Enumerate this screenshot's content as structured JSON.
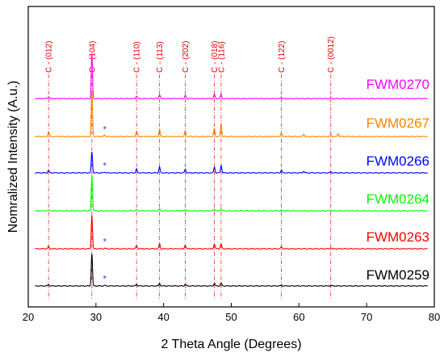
{
  "chart_data": {
    "type": "line",
    "xlabel": "2 Theta Angle (Degrees)",
    "ylabel": "Nomralized Intensity (A.u.)",
    "xlim": [
      20,
      80
    ],
    "xticks": [
      20,
      30,
      40,
      50,
      60,
      70,
      80
    ],
    "grid": false,
    "reference_peaks": [
      {
        "label": "C - (012)",
        "x": 23.0
      },
      {
        "label": "C - (104)",
        "x": 29.4
      },
      {
        "label": "C - (110)",
        "x": 36.0
      },
      {
        "label": "C - (113)",
        "x": 39.4
      },
      {
        "label": "C - (202)",
        "x": 43.2
      },
      {
        "label": "C - (018)",
        "x": 47.5
      },
      {
        "label": "C - (116)",
        "x": 48.5
      },
      {
        "label": "C - (122)",
        "x": 57.4
      },
      {
        "label": "C - (0012)",
        "x": 64.7
      }
    ],
    "series": [
      {
        "name": "FWM0270",
        "color": "#ff00ff",
        "peaks": [
          [
            23.0,
            0.6
          ],
          [
            29.4,
            14.0
          ],
          [
            36.0,
            0.8
          ],
          [
            39.4,
            1.3
          ],
          [
            43.2,
            0.9
          ],
          [
            47.5,
            1.3
          ],
          [
            48.5,
            1.3
          ],
          [
            57.4,
            0.4
          ],
          [
            64.7,
            0.3
          ]
        ]
      },
      {
        "name": "FWM0267",
        "color": "#ff8000",
        "marker_x": 31.3,
        "peaks": [
          [
            23.0,
            1.5
          ],
          [
            29.4,
            14.5
          ],
          [
            31.3,
            0.5
          ],
          [
            36.0,
            1.8
          ],
          [
            39.4,
            2.2
          ],
          [
            43.2,
            1.8
          ],
          [
            47.5,
            2.5
          ],
          [
            48.5,
            4.0
          ],
          [
            57.4,
            1.2
          ],
          [
            60.7,
            0.8
          ],
          [
            64.7,
            0.8
          ],
          [
            65.8,
            0.9
          ]
        ]
      },
      {
        "name": "FWM0266",
        "color": "#0000ff",
        "marker_x": 31.3,
        "peaks": [
          [
            23.0,
            0.8
          ],
          [
            29.4,
            6.5
          ],
          [
            31.3,
            0.3
          ],
          [
            36.0,
            1.2
          ],
          [
            39.4,
            1.8
          ],
          [
            43.2,
            1.2
          ],
          [
            47.5,
            1.8
          ],
          [
            48.5,
            2.3
          ],
          [
            57.4,
            0.8
          ],
          [
            60.7,
            0.5
          ],
          [
            64.7,
            0.4
          ]
        ]
      },
      {
        "name": "FWM0264",
        "color": "#00ff00",
        "peaks": [
          [
            23.0,
            0.3
          ],
          [
            29.4,
            11.0
          ],
          [
            36.0,
            0.3
          ],
          [
            39.4,
            0.6
          ],
          [
            43.2,
            0.4
          ],
          [
            47.5,
            0.6
          ],
          [
            48.5,
            0.7
          ]
        ]
      },
      {
        "name": "FWM0263",
        "color": "#ff0000",
        "marker_x": 31.3,
        "peaks": [
          [
            23.0,
            0.7
          ],
          [
            29.4,
            10.5
          ],
          [
            31.3,
            0.2
          ],
          [
            36.0,
            1.0
          ],
          [
            39.4,
            1.6
          ],
          [
            43.2,
            1.2
          ],
          [
            47.5,
            1.6
          ],
          [
            48.5,
            1.6
          ],
          [
            57.4,
            0.6
          ],
          [
            64.7,
            0.3
          ]
        ]
      },
      {
        "name": "FWM0259",
        "color": "#000000",
        "marker_x": 31.3,
        "peaks": [
          [
            23.0,
            0.5
          ],
          [
            29.4,
            10.0
          ],
          [
            31.3,
            0.2
          ],
          [
            36.0,
            0.6
          ],
          [
            39.4,
            0.8
          ],
          [
            43.2,
            0.6
          ],
          [
            47.5,
            0.8
          ],
          [
            48.5,
            0.8
          ],
          [
            57.4,
            0.3
          ],
          [
            64.7,
            0.2
          ]
        ]
      }
    ],
    "marker_symbol": "*"
  }
}
